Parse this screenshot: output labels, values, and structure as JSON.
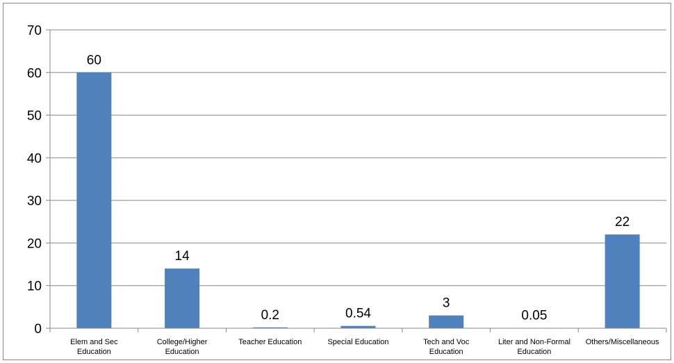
{
  "chart_data": {
    "type": "bar",
    "title": "",
    "xlabel": "",
    "ylabel": "",
    "categories": [
      [
        "Elem and Sec",
        "Education"
      ],
      [
        "College/Higher",
        "Education"
      ],
      [
        "Teacher Education"
      ],
      [
        "Special Education"
      ],
      [
        "Tech and Voc",
        "Education"
      ],
      [
        "Liter and Non-Formal",
        "Education"
      ],
      [
        "Others/Miscellaneous"
      ]
    ],
    "values": [
      60,
      14,
      0.2,
      0.54,
      3,
      0.05,
      22
    ],
    "data_labels": [
      "60",
      "14",
      "0.2",
      "0.54",
      "3",
      "0.05",
      "22"
    ],
    "ylim": [
      0,
      70
    ],
    "yticks": [
      0,
      10,
      20,
      30,
      40,
      50,
      60,
      70
    ],
    "grid": true,
    "legend": "none",
    "colors": {
      "bar": "#4F81BD",
      "grid": "#868686",
      "axis": "#868686",
      "text": "#000000"
    }
  }
}
